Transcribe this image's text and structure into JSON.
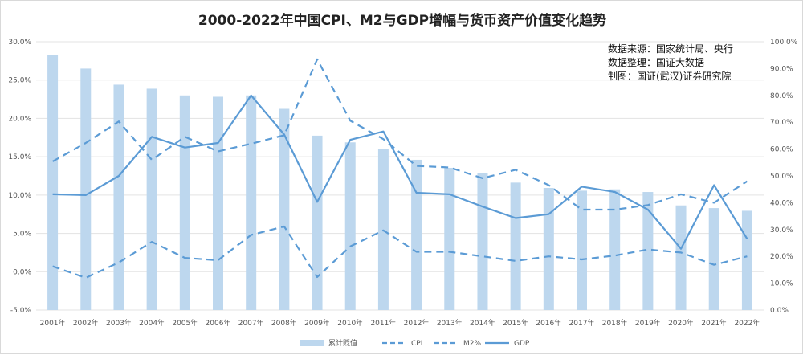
{
  "chart_data": {
    "type": "bar",
    "title": "2000-2022年中国CPI、M2与GDP增幅与货币资产价值变化趋势",
    "categories": [
      "2001年",
      "2002年",
      "2003年",
      "2004年",
      "2005年",
      "2006年",
      "2007年",
      "2008年",
      "2009年",
      "2010年",
      "2011年",
      "2012年",
      "2013年",
      "2014年",
      "2015年",
      "2016年",
      "2017年",
      "2018年",
      "2019年",
      "2020年",
      "2021年",
      "2022年"
    ],
    "left_axis": {
      "ylim": [
        -5,
        30
      ],
      "ticks": [
        "-5.0%",
        "0.0%",
        "5.0%",
        "10.0%",
        "15.0%",
        "20.0%",
        "25.0%",
        "30.0%"
      ]
    },
    "right_axis": {
      "ylim": [
        0,
        100
      ],
      "ticks": [
        "0.0%",
        "10.0%",
        "20.0%",
        "30.0%",
        "40.0%",
        "50.0%",
        "60.0%",
        "70.0%",
        "80.0%",
        "90.0%",
        "100.0%"
      ]
    },
    "series": [
      {
        "name": "累计贬值",
        "kind": "bar",
        "axis": "right",
        "color": "#bdd7ee",
        "values": [
          95,
          90,
          84,
          82.5,
          80,
          79.5,
          80,
          75,
          65,
          62.5,
          60,
          56,
          53,
          51,
          47.5,
          45.5,
          44.5,
          45,
          44,
          39,
          38,
          37
        ]
      },
      {
        "name": "CPI",
        "kind": "line",
        "style": "dashed",
        "axis": "left",
        "color": "#5b9bd5",
        "values": [
          0.7,
          -0.8,
          1.2,
          3.9,
          1.8,
          1.5,
          4.8,
          5.9,
          -0.7,
          3.3,
          5.4,
          2.6,
          2.6,
          2.0,
          1.4,
          2.0,
          1.6,
          2.1,
          2.9,
          2.5,
          0.9,
          2.0
        ]
      },
      {
        "name": "M2%",
        "kind": "line",
        "style": "dashed",
        "axis": "left",
        "color": "#5b9bd5",
        "values": [
          14.4,
          16.8,
          19.6,
          14.6,
          17.6,
          15.7,
          16.7,
          17.8,
          27.7,
          19.7,
          17.3,
          13.8,
          13.6,
          12.2,
          13.3,
          11.3,
          8.1,
          8.1,
          8.7,
          10.1,
          9.0,
          11.8
        ]
      },
      {
        "name": "GDP",
        "kind": "line",
        "style": "solid",
        "axis": "left",
        "color": "#5b9bd5",
        "values": [
          10.1,
          10.0,
          12.5,
          17.6,
          16.2,
          16.8,
          23.0,
          17.9,
          9.1,
          17.2,
          18.3,
          10.3,
          10.1,
          8.5,
          7.0,
          7.5,
          11.1,
          10.4,
          8.1,
          3.0,
          11.3,
          4.3
        ]
      }
    ],
    "notes": [
      "数据来源：国家统计局、央行",
      "数据整理：国证大数据",
      "制图：国证(武汉)证券研究院"
    ],
    "grid": true,
    "legend_position": "bottom"
  }
}
